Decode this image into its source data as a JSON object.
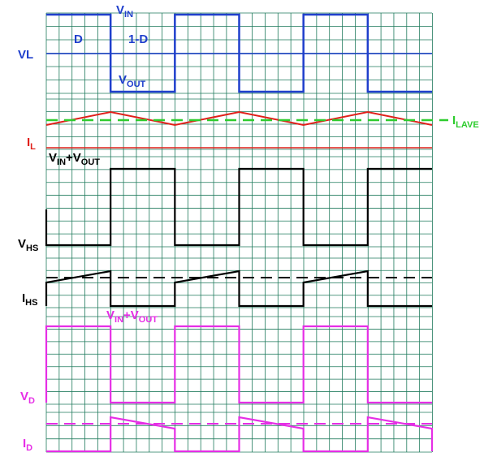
{
  "colors": {
    "grid": "#1f7a5c",
    "vl": "#1f3fcc",
    "il": "#e0201a",
    "il_avg": "#2ecc2e",
    "hs": "#000000",
    "d": "#e62ee6"
  },
  "labels": {
    "vl": "VL",
    "vin": {
      "main": "V",
      "sub": "IN"
    },
    "d": "D",
    "one_minus_d": "1-D",
    "vout": {
      "main": "V",
      "sub": "OUT"
    },
    "il": {
      "main": "I",
      "sub": "L"
    },
    "ilave": {
      "main": "I",
      "sub": "LAVE"
    },
    "vin_vout_1": {
      "a": "V",
      "a_sub": "IN",
      "plus": "+V",
      "b_sub": "OUT"
    },
    "vhs": {
      "main": "V",
      "sub": "HS"
    },
    "ihs": {
      "main": "I",
      "sub": "HS"
    },
    "vin_vout_2": {
      "a": "V",
      "a_sub": "IN",
      "plus": "+V",
      "b_sub": "OUT"
    },
    "vd": {
      "main": "V",
      "sub": "D"
    },
    "id": {
      "main": "I",
      "sub": "D"
    }
  },
  "timing": {
    "periods": 3,
    "duty": 0.5
  }
}
